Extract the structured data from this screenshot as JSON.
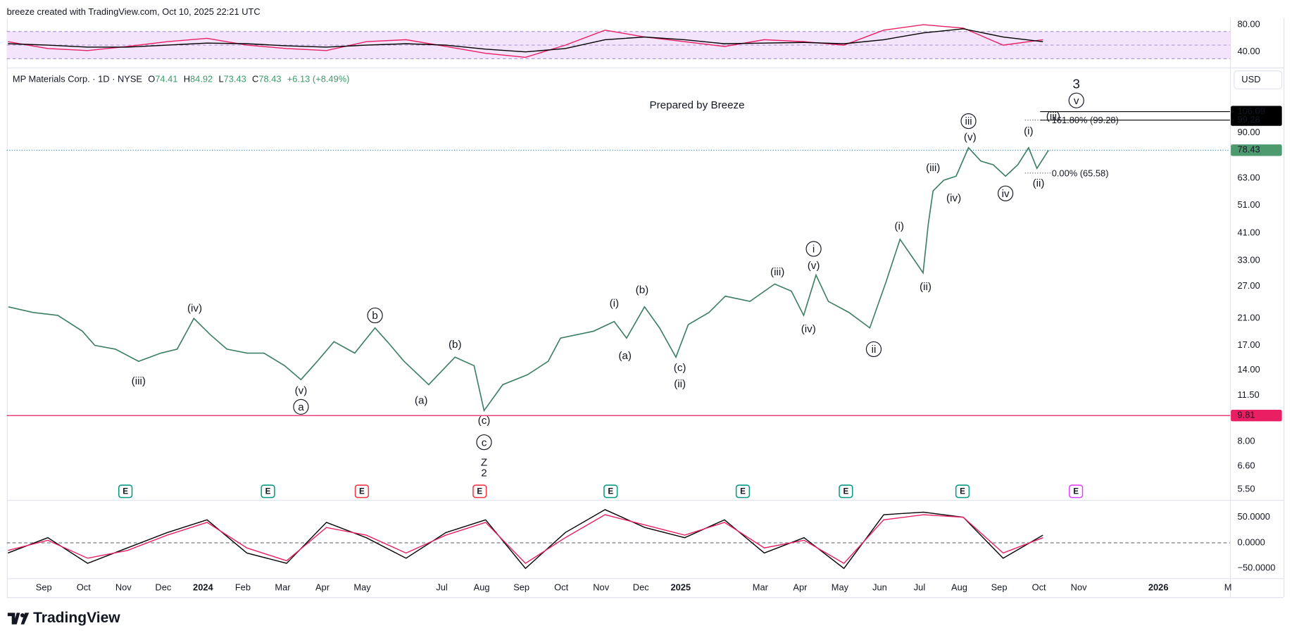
{
  "header": {
    "credit": "breeze created with TradingView.com, Oct 10, 2025 22:21 UTC",
    "symbol": "MP Materials Corp. · 1D · NYSE",
    "ohlc": [
      {
        "key": "O",
        "value": 74.41
      },
      {
        "key": "H",
        "value": 84.92
      },
      {
        "key": "L",
        "value": 73.43
      },
      {
        "key": "C",
        "value": 78.43
      }
    ],
    "change": "+6.13 (+8.49%)",
    "currency": "USD",
    "watermark": "Prepared by Breeze",
    "logo": "TradingView"
  },
  "chart_data": [
    {
      "type": "line",
      "log_scale": true,
      "color": "#3d7f62",
      "xlim": [
        -0.93,
        29.8
      ],
      "xticks": [
        {
          "value": 0,
          "label": "Sep"
        },
        {
          "value": 1,
          "label": "Oct"
        },
        {
          "value": 2,
          "label": "Nov"
        },
        {
          "value": 3,
          "label": "Dec"
        },
        {
          "value": 4,
          "label": "2024"
        },
        {
          "value": 5,
          "label": "Feb"
        },
        {
          "value": 6,
          "label": "Mar"
        },
        {
          "value": 7,
          "label": "Apr"
        },
        {
          "value": 8,
          "label": "May"
        },
        {
          "value": 10,
          "label": "Jul"
        },
        {
          "value": 11,
          "label": "Aug"
        },
        {
          "value": 12,
          "label": "Sep"
        },
        {
          "value": 13,
          "label": "Oct"
        },
        {
          "value": 14,
          "label": "Nov"
        },
        {
          "value": 15,
          "label": "Dec"
        },
        {
          "value": 16,
          "label": "2025"
        },
        {
          "value": 18,
          "label": "Mar"
        },
        {
          "value": 19,
          "label": "Apr"
        },
        {
          "value": 20,
          "label": "May"
        },
        {
          "value": 21,
          "label": "Jun"
        },
        {
          "value": 22,
          "label": "Jul"
        },
        {
          "value": 23,
          "label": "Aug"
        },
        {
          "value": 24,
          "label": "Sep"
        },
        {
          "value": 25,
          "label": "Oct"
        },
        {
          "value": 26,
          "label": "Nov"
        },
        {
          "value": 28,
          "label": "2026"
        },
        {
          "value": 29.75,
          "label": "M"
        }
      ],
      "ylim": [
        5.13,
        147
      ],
      "yticks": [
        {
          "value": 5.5,
          "label": "5.50"
        },
        {
          "value": 6.6,
          "label": "6.60"
        },
        {
          "value": 8,
          "label": "8.00"
        },
        {
          "value": 11.5,
          "label": "11.50"
        },
        {
          "value": 14,
          "label": "14.00"
        },
        {
          "value": 17,
          "label": "17.00"
        },
        {
          "value": 21,
          "label": "21.00"
        },
        {
          "value": 27,
          "label": "27.00"
        },
        {
          "value": 33,
          "label": "33.00"
        },
        {
          "value": 41,
          "label": "41.00"
        },
        {
          "value": 51,
          "label": "51.00"
        },
        {
          "value": 63,
          "label": "63.00"
        },
        {
          "value": 90,
          "label": "90.00"
        }
      ],
      "x": [
        -0.89,
        -0.27,
        0.35,
        0.97,
        1.28,
        1.8,
        2.38,
        2.94,
        3.35,
        3.77,
        4.18,
        4.6,
        5.11,
        5.53,
        6.05,
        6.46,
        6.87,
        7.29,
        7.81,
        8.32,
        8.63,
        9.05,
        9.67,
        10.33,
        10.81,
        11.06,
        11.53,
        12.15,
        12.67,
        12.98,
        13.81,
        14.33,
        14.64,
        15.09,
        15.47,
        15.88,
        16.19,
        16.71,
        17.12,
        17.74,
        18.36,
        18.78,
        19.09,
        19.4,
        19.71,
        20.23,
        20.75,
        21.16,
        21.51,
        21.88,
        22.09,
        22.22,
        22.34,
        22.61,
        22.92,
        23.23,
        23.54,
        23.85,
        24.16,
        24.47,
        24.74,
        24.95,
        25.24
      ],
      "values": [
        23,
        22,
        21.5,
        19,
        17,
        16.5,
        15,
        16,
        16.5,
        21,
        18.5,
        16.5,
        16,
        16,
        14.5,
        13,
        15,
        17.5,
        16,
        19.5,
        17.5,
        15,
        12.5,
        15.5,
        14.5,
        10.2,
        12.5,
        13.5,
        15,
        18,
        19,
        20.5,
        18,
        23,
        19.5,
        15.5,
        20,
        22,
        25,
        24,
        27.5,
        26,
        21.5,
        29.5,
        24,
        22,
        19.5,
        28,
        39,
        33,
        30,
        44,
        57,
        62,
        64,
        80,
        72,
        70,
        64,
        70,
        80,
        68,
        78.43
      ],
      "price_lines": [
        {
          "value": 106.09,
          "color": "#000000",
          "from": 25.03,
          "style": "solid"
        },
        {
          "value": 99.28,
          "color": "#000000",
          "from": 25.03,
          "style": "solid"
        },
        {
          "value": 78.43,
          "color": "#4c9a6e",
          "line_color": "#2a8fa8",
          "from": -0.93,
          "style": "dotted"
        },
        {
          "value": 9.81,
          "color": "#e91e63",
          "from": -0.93,
          "style": "solid"
        }
      ],
      "fib_levels": [
        {
          "value": 99.28,
          "label": "161.80% (99.28)",
          "from": 24.65,
          "to": 25.3
        },
        {
          "value": 65.58,
          "label": "0.00% (65.58)",
          "from": 24.65,
          "to": 25.3
        }
      ],
      "annotations": [
        {
          "text": "(iii)",
          "x": 2.38,
          "y": 12.9
        },
        {
          "text": "(iv)",
          "x": 3.79,
          "y": 22.8
        },
        {
          "text": "(v)",
          "x": 6.46,
          "y": 11.95
        },
        {
          "text": "a",
          "x": 6.46,
          "y": 10.5,
          "circled": true
        },
        {
          "text": "b",
          "x": 8.32,
          "y": 21.5,
          "circled": true
        },
        {
          "text": "(a)",
          "x": 9.48,
          "y": 11.06
        },
        {
          "text": "(b)",
          "x": 10.33,
          "y": 17.15
        },
        {
          "text": "(c)",
          "x": 11.06,
          "y": 9.47
        },
        {
          "text": "c",
          "x": 11.06,
          "y": 7.96,
          "circled": true
        },
        {
          "text": "Z",
          "x": 11.06,
          "y": 6.81
        },
        {
          "text": "2",
          "x": 11.06,
          "y": 6.27
        },
        {
          "text": "(i)",
          "x": 14.33,
          "y": 23.7
        },
        {
          "text": "(a)",
          "x": 14.6,
          "y": 15.7
        },
        {
          "text": "(b)",
          "x": 15.03,
          "y": 26.3
        },
        {
          "text": "(c)",
          "x": 15.98,
          "y": 14.3
        },
        {
          "text": "(ii)",
          "x": 15.98,
          "y": 12.6
        },
        {
          "text": "(iii)",
          "x": 18.43,
          "y": 30.3
        },
        {
          "text": "(iv)",
          "x": 19.21,
          "y": 19.4
        },
        {
          "text": "(v)",
          "x": 19.34,
          "y": 31.8
        },
        {
          "text": "i",
          "x": 19.34,
          "y": 36.2,
          "circled": true
        },
        {
          "text": "ii",
          "x": 20.85,
          "y": 16.5,
          "circled": true
        },
        {
          "text": "(i)",
          "x": 21.49,
          "y": 43.4
        },
        {
          "text": "(ii)",
          "x": 22.15,
          "y": 27.0
        },
        {
          "text": "(iii)",
          "x": 22.34,
          "y": 68.6
        },
        {
          "text": "(iv)",
          "x": 22.86,
          "y": 54.1
        },
        {
          "text": "iii",
          "x": 23.23,
          "y": 98.5,
          "circled": true
        },
        {
          "text": "(v)",
          "x": 23.27,
          "y": 87.2
        },
        {
          "text": "iv",
          "x": 24.16,
          "y": 55.9,
          "circled": true
        },
        {
          "text": "(i)",
          "x": 24.74,
          "y": 91.2
        },
        {
          "text": "(ii)",
          "x": 24.99,
          "y": 60.7
        },
        {
          "text": "(iii)",
          "x": 25.36,
          "y": 102.4
        },
        {
          "text": "v",
          "x": 25.94,
          "y": 115.8,
          "circled": true
        },
        {
          "text": "3",
          "x": 25.94,
          "y": 131.8
        }
      ],
      "earnings": [
        {
          "x": 2.05,
          "label": "E",
          "color": "#089981"
        },
        {
          "x": 5.63,
          "label": "E",
          "color": "#089981"
        },
        {
          "x": 7.99,
          "label": "E",
          "color": "#f23645"
        },
        {
          "x": 10.95,
          "label": "E",
          "color": "#f23645"
        },
        {
          "x": 14.24,
          "label": "E",
          "color": "#089981"
        },
        {
          "x": 17.56,
          "label": "E",
          "color": "#089981"
        },
        {
          "x": 20.15,
          "label": "E",
          "color": "#089981"
        },
        {
          "x": 23.08,
          "label": "E",
          "color": "#089981"
        },
        {
          "x": 25.93,
          "label": "E",
          "color": "#e040fb"
        }
      ]
    },
    {
      "type": "line",
      "x": [
        -0.9,
        0.1,
        1.1,
        2.1,
        3.1,
        4.1,
        5.1,
        6.1,
        7.1,
        8.1,
        9.1,
        10.1,
        11.1,
        12.1,
        13.1,
        14.1,
        15.1,
        16.1,
        17.1,
        18.1,
        19.1,
        20.1,
        21.1,
        22.1,
        23.1,
        24.1,
        25.1
      ],
      "ylim": [
        19.4,
        89.7
      ],
      "yticks": [
        {
          "value": 80,
          "label": "80.00"
        },
        {
          "value": 40,
          "label": "40.00"
        }
      ],
      "band": [
        30,
        70
      ],
      "midline": 50,
      "band_color": "#f3e3fb",
      "series": [
        {
          "color": "#e91e63",
          "values": [
            55,
            45,
            42,
            48,
            55,
            60,
            50,
            45,
            42,
            55,
            58,
            48,
            38,
            32,
            50,
            72,
            62,
            55,
            48,
            58,
            55,
            50,
            72,
            80,
            75,
            50,
            58
          ]
        },
        {
          "color": "#000000",
          "values": [
            52,
            50,
            47,
            47,
            50,
            53,
            52,
            49,
            47,
            50,
            52,
            50,
            44,
            40,
            45,
            58,
            62,
            58,
            52,
            53,
            54,
            52,
            58,
            68,
            74,
            62,
            55
          ]
        }
      ]
    },
    {
      "type": "line",
      "x": [
        -0.9,
        0.1,
        1.1,
        2.1,
        3.1,
        4.1,
        5.1,
        6.1,
        7.1,
        8.1,
        9.1,
        10.1,
        11.1,
        12.1,
        13.1,
        14.1,
        15.1,
        16.1,
        17.1,
        18.1,
        19.1,
        20.1,
        21.1,
        22.1,
        23.1,
        24.1,
        25.1
      ],
      "ylim": [
        -66,
        79
      ],
      "yticks": [
        {
          "value": 50,
          "label": "50.0000"
        },
        {
          "value": 0,
          "label": "0.0000"
        },
        {
          "value": -50,
          "label": "−50.0000"
        }
      ],
      "zero_line": 0,
      "series": [
        {
          "color": "#000000",
          "values": [
            -20,
            10,
            -40,
            -10,
            20,
            45,
            -20,
            -40,
            40,
            10,
            -30,
            20,
            45,
            -50,
            20,
            65,
            30,
            10,
            45,
            -20,
            10,
            -50,
            55,
            60,
            50,
            -30,
            15
          ]
        },
        {
          "color": "#e91e63",
          "values": [
            -15,
            5,
            -30,
            -15,
            15,
            40,
            -10,
            -35,
            30,
            15,
            -20,
            15,
            40,
            -40,
            10,
            55,
            35,
            15,
            40,
            -10,
            5,
            -40,
            45,
            55,
            50,
            -20,
            10
          ]
        }
      ]
    }
  ]
}
